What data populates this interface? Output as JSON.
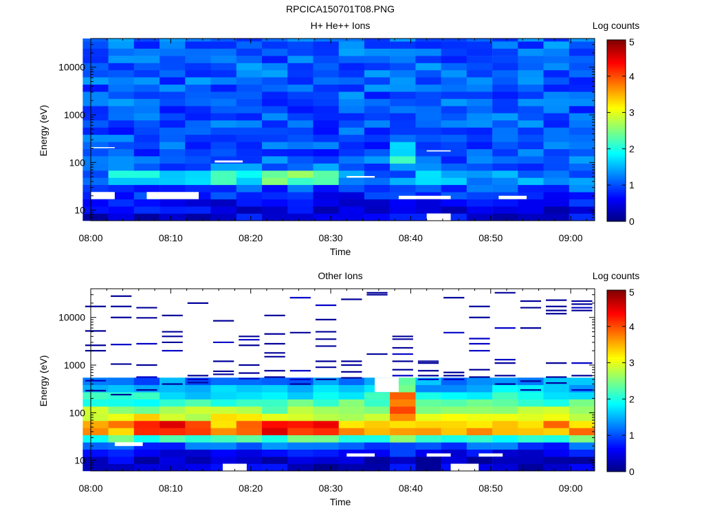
{
  "figure_title": "RPCICA150701T08.PNG",
  "chart_data": [
    {
      "type": "heatmap",
      "title": "H+ He++ Ions",
      "xlabel": "Time",
      "ylabel": "Energy (eV)",
      "x_ticks": [
        "08:00",
        "08:10",
        "08:20",
        "08:30",
        "08:40",
        "08:50",
        "09:00"
      ],
      "x_tick_minutes": [
        0,
        10,
        20,
        30,
        40,
        50,
        60
      ],
      "xlim_minutes": [
        0,
        63
      ],
      "y_ticks": [
        "10",
        "100",
        "1000",
        "10000"
      ],
      "y_tick_values": [
        10,
        100,
        1000,
        10000
      ],
      "ylim": [
        6,
        40000
      ],
      "y_scale": "log",
      "colorbar": {
        "label": "Log counts",
        "ticks": [
          "0",
          "1",
          "2",
          "3",
          "4",
          "5"
        ],
        "min": 0,
        "max": 5,
        "colormap": "jet"
      },
      "time_bins_minutes": [
        0.6,
        3.8,
        7.0,
        10.2,
        13.4,
        16.6,
        19.8,
        23.0,
        26.2,
        29.4,
        32.6,
        35.8,
        39.0,
        42.2,
        45.4,
        48.6,
        51.8,
        55.0,
        58.2,
        61.4
      ],
      "energy_bin_edges_eV": [
        6,
        8.5,
        12,
        17,
        24,
        34,
        48,
        68,
        96,
        136,
        192,
        272,
        385,
        545,
        770,
        1090,
        1540,
        2180,
        3080,
        4360,
        6170,
        8720,
        12300,
        17400,
        24700,
        34900,
        40000
      ],
      "profile": [
        {
          "e": 9,
          "v": 0.5
        },
        {
          "e": 15,
          "v": 0.6
        },
        {
          "e": 25,
          "v": 0.85
        },
        {
          "e": 45,
          "v": 1.5
        },
        {
          "e": 60,
          "v": 1.2
        },
        {
          "e": 150,
          "v": 1.0
        },
        {
          "e": 1000,
          "v": 1.05
        },
        {
          "e": 10000,
          "v": 1.1
        },
        {
          "e": 40000,
          "v": 1.1
        }
      ],
      "features": [
        {
          "t0": 2.5,
          "t1": 22.5,
          "e0": 40,
          "e1": 68,
          "v": 1.9
        },
        {
          "t0": 22.5,
          "t1": 30.0,
          "e0": 40,
          "e1": 68,
          "v": 2.4
        },
        {
          "t0": 38.5,
          "t1": 41.5,
          "e0": 100,
          "e1": 270,
          "v": 1.9
        },
        {
          "t0": 41.5,
          "t1": 61.0,
          "e0": 40,
          "e1": 68,
          "v": 1.4
        }
      ],
      "empty_cells": [
        {
          "t0": 0.0,
          "t1": 3.0,
          "e0": 17,
          "e1": 24
        },
        {
          "t0": 7.0,
          "t1": 13.5,
          "e0": 17,
          "e1": 24
        },
        {
          "t0": 38.5,
          "t1": 45.0,
          "e0": 17,
          "e1": 20
        },
        {
          "t0": 42.0,
          "t1": 45.0,
          "e0": 6,
          "e1": 8.5
        },
        {
          "t0": 51.0,
          "t1": 54.5,
          "e0": 17,
          "e1": 20
        },
        {
          "t0": 15.5,
          "t1": 19.0,
          "e0": 100,
          "e1": 110
        },
        {
          "t0": 32.0,
          "t1": 35.5,
          "e0": 48,
          "e1": 52
        },
        {
          "t0": 0.0,
          "t1": 3.0,
          "e0": 200,
          "e1": 210
        },
        {
          "t0": 42.0,
          "t1": 45.0,
          "e0": 170,
          "e1": 180
        }
      ]
    },
    {
      "type": "heatmap",
      "title": "Other Ions",
      "xlabel": "Time",
      "ylabel": "Energy (eV)",
      "x_ticks": [
        "08:00",
        "08:10",
        "08:20",
        "08:30",
        "08:40",
        "08:50",
        "09:00"
      ],
      "x_tick_minutes": [
        0,
        10,
        20,
        30,
        40,
        50,
        60
      ],
      "xlim_minutes": [
        0,
        63
      ],
      "y_ticks": [
        "10",
        "100",
        "1000",
        "10000"
      ],
      "y_tick_values": [
        10,
        100,
        1000,
        10000
      ],
      "ylim": [
        6,
        40000
      ],
      "y_scale": "log",
      "colorbar": {
        "label": "Log counts",
        "ticks": [
          "0",
          "1",
          "2",
          "3",
          "4",
          "5"
        ],
        "min": 0,
        "max": 5,
        "colormap": "jet"
      },
      "time_bins_minutes": [
        0.6,
        3.8,
        7.0,
        10.2,
        13.4,
        16.6,
        19.8,
        23.0,
        26.2,
        29.4,
        32.6,
        35.8,
        39.0,
        42.2,
        45.4,
        48.6,
        51.8,
        55.0,
        58.2,
        61.4
      ],
      "energy_bin_edges_eV": [
        6,
        8.5,
        12,
        17,
        24,
        34,
        48,
        68,
        96,
        136,
        192,
        272,
        385,
        545,
        770,
        1090,
        1540,
        2180,
        3080,
        4360,
        6170,
        8720,
        12300,
        17400,
        24700,
        34900,
        40000
      ],
      "profile": [
        {
          "e": 9,
          "v": 0.4
        },
        {
          "e": 14,
          "v": 0.6
        },
        {
          "e": 20,
          "v": 1.0
        },
        {
          "e": 27,
          "v": 2.0
        },
        {
          "e": 35,
          "v": 3.1
        },
        {
          "e": 45,
          "v": 3.9
        },
        {
          "e": 60,
          "v": 3.5
        },
        {
          "e": 100,
          "v": 2.7
        },
        {
          "e": 200,
          "v": 2.0
        },
        {
          "e": 400,
          "v": 1.4
        },
        {
          "e": 1000,
          "v": 0.6
        },
        {
          "e": 3000,
          "v": 0.3
        },
        {
          "e": 40000,
          "v": 0.1
        }
      ],
      "features": [
        {
          "t0": 38.5,
          "t1": 41.5,
          "e0": 68,
          "e1": 272,
          "v": 3.7
        },
        {
          "t0": 38.5,
          "t1": 41.5,
          "e0": 272,
          "e1": 545,
          "v": 2.3
        },
        {
          "t0": 6.5,
          "t1": 13.5,
          "e0": 40,
          "e1": 68,
          "v": 4.3
        },
        {
          "t0": 22.5,
          "t1": 30.0,
          "e0": 40,
          "e1": 68,
          "v": 4.3
        }
      ],
      "sparse_threshold_eV": 600,
      "empty_cells": [
        {
          "t0": 3.0,
          "t1": 6.5,
          "e0": 20,
          "e1": 24
        },
        {
          "t0": 16.5,
          "t1": 19.5,
          "e0": 6,
          "e1": 8.5
        },
        {
          "t0": 32.0,
          "t1": 35.5,
          "e0": 12,
          "e1": 14
        },
        {
          "t0": 42.0,
          "t1": 45.0,
          "e0": 12,
          "e1": 14
        },
        {
          "t0": 45.0,
          "t1": 48.5,
          "e0": 6,
          "e1": 8.5
        },
        {
          "t0": 48.5,
          "t1": 51.5,
          "e0": 12,
          "e1": 14
        },
        {
          "t0": 35.5,
          "t1": 38.5,
          "e0": 272,
          "e1": 545
        }
      ],
      "lines": [
        {
          "t": 0.6,
          "e": [
            290,
            470,
            2000,
            2600,
            5200,
            17000
          ]
        },
        {
          "t": 3.8,
          "e": [
            240,
            1050,
            2700,
            10000,
            17000,
            28000
          ]
        },
        {
          "t": 7.0,
          "e": [
            300,
            560,
            1000,
            2800,
            9800,
            16000
          ]
        },
        {
          "t": 10.2,
          "e": [
            400,
            2000,
            3000,
            4000,
            5000,
            11000
          ]
        },
        {
          "t": 13.4,
          "e": [
            430,
            500,
            600,
            20000
          ]
        },
        {
          "t": 16.6,
          "e": [
            640,
            740,
            1200,
            3000,
            8500
          ]
        },
        {
          "t": 19.8,
          "e": [
            520,
            680,
            1000,
            2600,
            3400,
            4000
          ]
        },
        {
          "t": 23.0,
          "e": [
            560,
            760,
            1500,
            1800,
            2800,
            4500,
            11000
          ]
        },
        {
          "t": 26.2,
          "e": [
            400,
            500,
            760,
            4800,
            26000
          ]
        },
        {
          "t": 29.4,
          "e": [
            500,
            900,
            1200,
            2500,
            3500,
            5000,
            9000,
            18000
          ]
        },
        {
          "t": 32.6,
          "e": [
            540,
            720,
            1000,
            1200,
            24000
          ]
        },
        {
          "t": 35.8,
          "e": [
            1700,
            30000,
            33000
          ]
        },
        {
          "t": 39.0,
          "e": [
            600,
            800,
            1200,
            1700,
            2300,
            3500,
            4000
          ]
        },
        {
          "t": 42.2,
          "e": [
            500,
            600,
            760,
            1100,
            1200
          ]
        },
        {
          "t": 45.4,
          "e": [
            500,
            600,
            700,
            4800,
            26000
          ]
        },
        {
          "t": 48.6,
          "e": [
            560,
            800,
            2000,
            2800,
            3600,
            10000,
            17000
          ]
        },
        {
          "t": 51.8,
          "e": [
            400,
            600,
            1100,
            1300,
            6000,
            33000
          ]
        },
        {
          "t": 55.0,
          "e": [
            300,
            460,
            6000,
            16000,
            22000
          ]
        },
        {
          "t": 58.2,
          "e": [
            420,
            560,
            1100,
            12000,
            14000,
            17000,
            23000
          ]
        },
        {
          "t": 61.4,
          "e": [
            300,
            600,
            1100,
            14000,
            16000,
            19000,
            22000
          ]
        }
      ]
    }
  ]
}
